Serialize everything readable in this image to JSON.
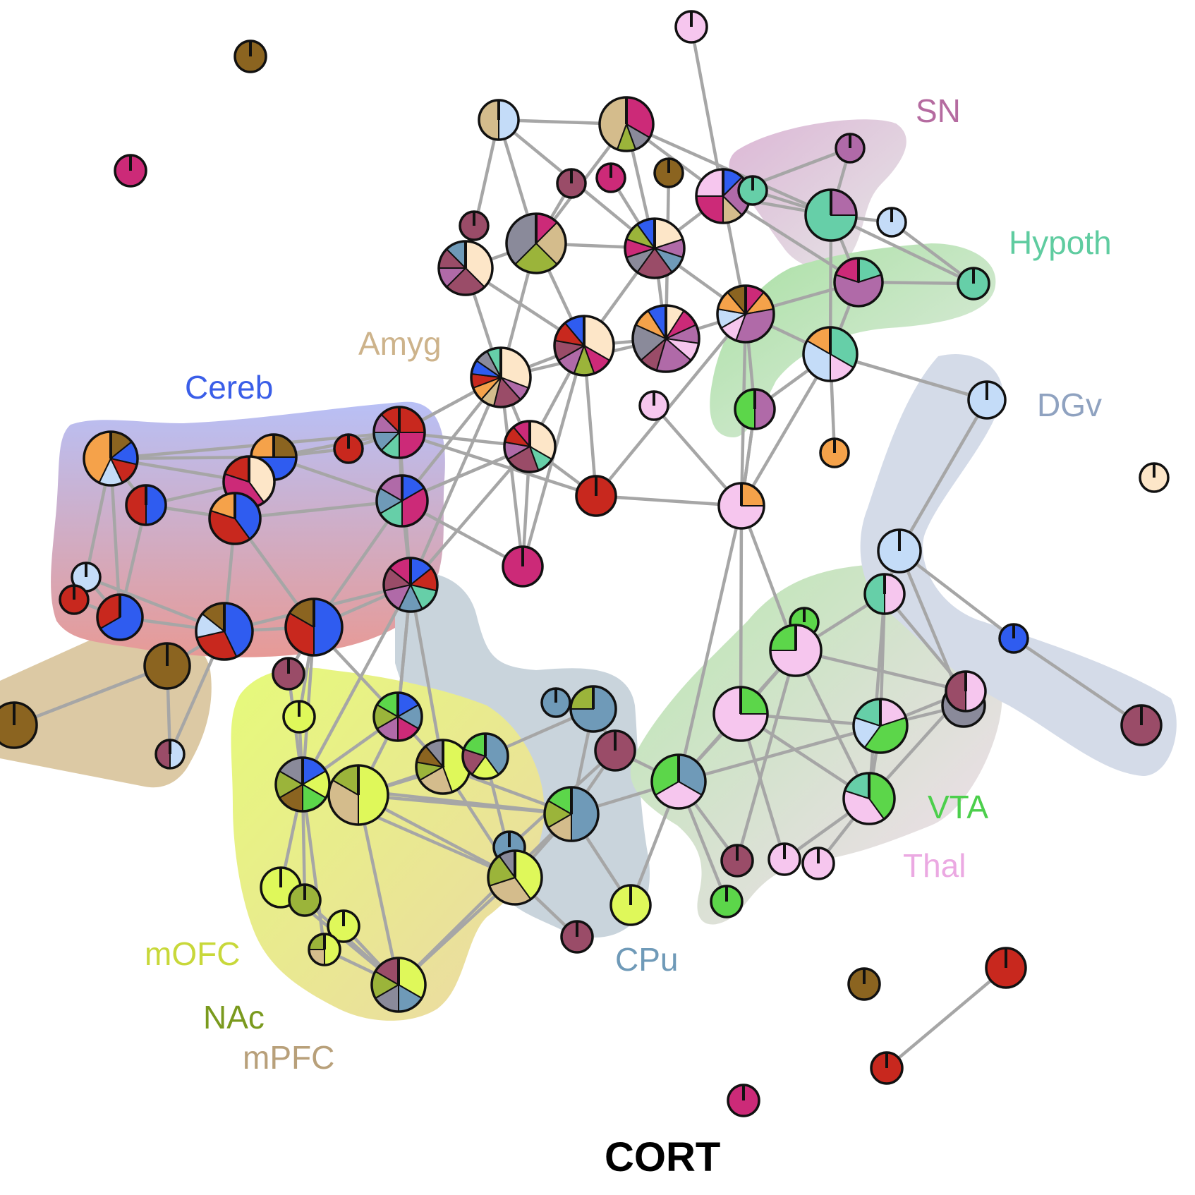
{
  "title": "CORT",
  "region_labels": [
    {
      "id": "SN",
      "text": "SN",
      "color": "#b56ba0"
    },
    {
      "id": "Hypoth",
      "text": "Hypoth",
      "color": "#5fcca0"
    },
    {
      "id": "Amyg",
      "text": "Amyg",
      "color": "#cdb38b"
    },
    {
      "id": "Cereb",
      "text": "Cereb",
      "color": "#3a5ee8"
    },
    {
      "id": "DGv",
      "text": "DGv",
      "color": "#8fa2c0"
    },
    {
      "id": "VTA",
      "text": "VTA",
      "color": "#4ccf4c"
    },
    {
      "id": "Thal",
      "text": "Thal",
      "color": "#eba9e2"
    },
    {
      "id": "mOFC",
      "text": "mOFC",
      "color": "#c8d83a"
    },
    {
      "id": "CPu",
      "text": "CPu",
      "color": "#6f9ab8"
    },
    {
      "id": "NAc",
      "text": "NAc",
      "color": "#7a9a1e"
    },
    {
      "id": "mPFC",
      "text": "mPFC",
      "color": "#b8a07a"
    }
  ],
  "colors": {
    "SN": "#b06aa8",
    "Hypoth": "#66cfa8",
    "Amyg": "#d4bc8c",
    "Cereb": "#2f5cf0",
    "DGv": "#c4dcf8",
    "VTA": "#5cd64a",
    "Thal": "#f6c6ee",
    "mOFC": "#dff85a",
    "CPu": "#6f9ab8",
    "NAc": "#9bb43a",
    "mPFC": "#8b6420",
    "Orange": "#f5a24a",
    "Red": "#c8281e",
    "Magenta": "#cc2a78",
    "Mauve": "#9a4c68",
    "Gray": "#8a8a9a",
    "Cream": "#fde6c8"
  },
  "nodes": [
    {
      "id": 1,
      "slices": [
        [
          "Thal",
          1
        ]
      ]
    },
    {
      "id": 2,
      "slices": [
        [
          "mPFC",
          1
        ]
      ]
    },
    {
      "id": 3,
      "slices": [
        [
          "Magenta",
          1
        ]
      ]
    },
    {
      "id": 4,
      "slices": [
        [
          "DGv",
          1
        ],
        [
          "Amyg",
          1
        ]
      ]
    },
    {
      "id": 5,
      "slices": [
        [
          "Magenta",
          3
        ],
        [
          "Gray",
          1
        ],
        [
          "NAc",
          1
        ],
        [
          "Amyg",
          4
        ]
      ]
    },
    {
      "id": 6,
      "slices": [
        [
          "SN",
          1
        ]
      ]
    },
    {
      "id": 7,
      "slices": [
        [
          "Mauve",
          1
        ]
      ]
    },
    {
      "id": 8,
      "slices": [
        [
          "Magenta",
          1
        ]
      ]
    },
    {
      "id": 9,
      "slices": [
        [
          "mPFC",
          1
        ]
      ]
    },
    {
      "id": 10,
      "slices": [
        [
          "Cereb",
          1
        ],
        [
          "SN",
          2
        ],
        [
          "Amyg",
          1
        ],
        [
          "Magenta",
          2
        ],
        [
          "Thal",
          2
        ]
      ]
    },
    {
      "id": 11,
      "slices": [
        [
          "Hypoth",
          1
        ]
      ]
    },
    {
      "id": 12,
      "slices": [
        [
          "DGv",
          1
        ]
      ]
    },
    {
      "id": 13,
      "slices": [
        [
          "SN",
          1
        ],
        [
          "Hypoth",
          3
        ]
      ]
    },
    {
      "id": 14,
      "slices": [
        [
          "Mauve",
          1
        ]
      ]
    },
    {
      "id": 15,
      "slices": [
        [
          "Magenta",
          1
        ],
        [
          "Amyg",
          2
        ],
        [
          "NAc",
          2
        ],
        [
          "Gray",
          3
        ]
      ]
    },
    {
      "id": 16,
      "slices": [
        [
          "Cream",
          3
        ],
        [
          "Mauve",
          2
        ],
        [
          "SN",
          1
        ],
        [
          "Mauve",
          1
        ],
        [
          "CPu",
          1
        ]
      ]
    },
    {
      "id": 17,
      "slices": [
        [
          "Cream",
          2
        ],
        [
          "SN",
          1
        ],
        [
          "CPu",
          1
        ],
        [
          "Mauve",
          2
        ],
        [
          "Gray",
          1
        ],
        [
          "Magenta",
          1
        ],
        [
          "NAc",
          1
        ],
        [
          "Cereb",
          1
        ]
      ]
    },
    {
      "id": 18,
      "slices": [
        [
          "Cream",
          1
        ],
        [
          "Magenta",
          1
        ],
        [
          "SN",
          1
        ],
        [
          "Thal",
          1
        ],
        [
          "SN",
          2
        ],
        [
          "Mauve",
          1
        ],
        [
          "Gray",
          2
        ],
        [
          "Orange",
          1
        ],
        [
          "Cereb",
          1
        ]
      ]
    },
    {
      "id": 19,
      "slices": [
        [
          "Hypoth",
          1
        ],
        [
          "SN",
          3
        ],
        [
          "Magenta",
          1
        ]
      ]
    },
    {
      "id": 20,
      "slices": [
        [
          "Hypoth",
          1
        ]
      ]
    },
    {
      "id": 21,
      "slices": [
        [
          "Magenta",
          1
        ],
        [
          "Orange",
          1
        ],
        [
          "SN",
          3
        ],
        [
          "Thal",
          1
        ],
        [
          "DGv",
          1
        ],
        [
          "Orange",
          1
        ],
        [
          "mPFC",
          1
        ]
      ]
    },
    {
      "id": 22,
      "slices": [
        [
          "Cream",
          3
        ],
        [
          "Magenta",
          1
        ],
        [
          "NAc",
          1
        ],
        [
          "SN",
          1
        ],
        [
          "Mauve",
          1
        ],
        [
          "Red",
          1
        ],
        [
          "Cereb",
          1
        ]
      ]
    },
    {
      "id": 23,
      "slices": [
        [
          "Cream",
          4
        ],
        [
          "SN",
          1
        ],
        [
          "Mauve",
          2
        ],
        [
          "Amyg",
          1
        ],
        [
          "Orange",
          1
        ],
        [
          "Red",
          1
        ],
        [
          "Cereb",
          1
        ],
        [
          "Gray",
          1
        ],
        [
          "Hypoth",
          1
        ]
      ]
    },
    {
      "id": 24,
      "slices": [
        [
          "Hypoth",
          2
        ],
        [
          "Thal",
          1
        ],
        [
          "DGv",
          2
        ],
        [
          "Orange",
          1
        ]
      ]
    },
    {
      "id": 25,
      "slices": [
        [
          "Cream",
          3
        ],
        [
          "Hypoth",
          1
        ],
        [
          "Mauve",
          2
        ],
        [
          "SN",
          1
        ],
        [
          "Red",
          1
        ],
        [
          "Magenta",
          1
        ]
      ]
    },
    {
      "id": 26,
      "slices": [
        [
          "Thal",
          1
        ]
      ]
    },
    {
      "id": 27,
      "slices": [
        [
          "SN",
          1
        ],
        [
          "VTA",
          1
        ]
      ]
    },
    {
      "id": 28,
      "slices": [
        [
          "DGv",
          1
        ]
      ]
    },
    {
      "id": 29,
      "slices": [
        [
          "Cream",
          1
        ]
      ]
    },
    {
      "id": 30,
      "slices": [
        [
          "mPFC",
          1
        ],
        [
          "Cereb",
          1
        ],
        [
          "Red",
          1
        ],
        [
          "DGv",
          1
        ],
        [
          "Orange",
          3
        ]
      ]
    },
    {
      "id": 31,
      "slices": [
        [
          "mPFC",
          1
        ],
        [
          "Cereb",
          2
        ],
        [
          "Orange",
          1
        ]
      ]
    },
    {
      "id": 32,
      "slices": [
        [
          "Red",
          1
        ]
      ]
    },
    {
      "id": 33,
      "slices": [
        [
          "Red",
          2
        ],
        [
          "Magenta",
          2
        ],
        [
          "Hypoth",
          1
        ],
        [
          "CPu",
          1
        ],
        [
          "SN",
          1
        ],
        [
          "Red",
          1
        ]
      ]
    },
    {
      "id": 34,
      "slices": [
        [
          "Cream",
          2
        ],
        [
          "Magenta",
          2
        ],
        [
          "Red",
          1
        ]
      ]
    },
    {
      "id": 35,
      "slices": [
        [
          "Orange",
          1
        ]
      ]
    },
    {
      "id": 36,
      "slices": [
        [
          "Orange",
          1
        ],
        [
          "Thal",
          3
        ]
      ]
    },
    {
      "id": 37,
      "slices": [
        [
          "Cereb",
          1
        ],
        [
          "Red",
          1
        ]
      ]
    },
    {
      "id": 38,
      "slices": [
        [
          "Cereb",
          2
        ],
        [
          "Red",
          2
        ],
        [
          "Orange",
          1
        ]
      ]
    },
    {
      "id": 39,
      "slices": [
        [
          "Cereb",
          1
        ],
        [
          "Magenta",
          2
        ],
        [
          "Hypoth",
          1
        ],
        [
          "CPu",
          1
        ],
        [
          "SN",
          1
        ]
      ]
    },
    {
      "id": 40,
      "slices": [
        [
          "Red",
          1
        ]
      ]
    },
    {
      "id": 41,
      "slices": [
        [
          "DGv",
          1
        ]
      ]
    },
    {
      "id": 42,
      "slices": [
        [
          "Magenta",
          1
        ]
      ]
    },
    {
      "id": 43,
      "slices": [
        [
          "Red",
          1
        ]
      ]
    },
    {
      "id": 44,
      "slices": [
        [
          "Cereb",
          2
        ],
        [
          "Red",
          1
        ]
      ]
    },
    {
      "id": 45,
      "slices": [
        [
          "Cereb",
          3
        ],
        [
          "Red",
          2
        ],
        [
          "DGv",
          1
        ],
        [
          "mPFC",
          1
        ]
      ]
    },
    {
      "id": 46,
      "slices": [
        [
          "Cereb",
          1
        ],
        [
          "Red",
          1
        ],
        [
          "Hypoth",
          1
        ],
        [
          "CPu",
          1
        ],
        [
          "SN",
          1
        ],
        [
          "Mauve",
          1
        ],
        [
          "Magenta",
          1
        ]
      ]
    },
    {
      "id": 47,
      "slices": [
        [
          "Cereb",
          3
        ],
        [
          "Red",
          2
        ],
        [
          "mPFC",
          1
        ]
      ]
    },
    {
      "id": 48,
      "slices": [
        [
          "DGv",
          1
        ]
      ]
    },
    {
      "id": 49,
      "slices": [
        [
          "Thal",
          1
        ],
        [
          "Hypoth",
          1
        ]
      ]
    },
    {
      "id": 50,
      "slices": [
        [
          "VTA",
          1
        ]
      ]
    },
    {
      "id": 51,
      "slices": [
        [
          "Thal",
          3
        ],
        [
          "VTA",
          1
        ]
      ]
    },
    {
      "id": 52,
      "slices": [
        [
          "mPFC",
          1
        ]
      ]
    },
    {
      "id": 53,
      "slices": [
        [
          "mPFC",
          1
        ]
      ]
    },
    {
      "id": 54,
      "slices": [
        [
          "Cereb",
          1
        ]
      ]
    },
    {
      "id": 55,
      "slices": [
        [
          "Mauve",
          1
        ]
      ]
    },
    {
      "id": 56,
      "slices": [
        [
          "mOFC",
          1
        ]
      ]
    },
    {
      "id": 57,
      "slices": [
        [
          "Cereb",
          1
        ],
        [
          "CPu",
          1
        ],
        [
          "Magenta",
          1
        ],
        [
          "SN",
          1
        ],
        [
          "NAc",
          1
        ],
        [
          "VTA",
          1
        ]
      ]
    },
    {
      "id": 58,
      "slices": [
        [
          "Gray",
          1
        ]
      ]
    },
    {
      "id": 59,
      "slices": [
        [
          "CPu",
          1
        ]
      ]
    },
    {
      "id": 60,
      "slices": [
        [
          "CPu",
          3
        ],
        [
          "NAc",
          1
        ]
      ]
    },
    {
      "id": 61,
      "slices": [
        [
          "Mauve",
          1
        ]
      ]
    },
    {
      "id": 62,
      "slices": [
        [
          "Cereb",
          1
        ],
        [
          "mOFC",
          1
        ],
        [
          "VTA",
          1
        ],
        [
          "mPFC",
          1
        ],
        [
          "NAc",
          1
        ],
        [
          "Gray",
          1
        ]
      ]
    },
    {
      "id": 63,
      "slices": [
        [
          "mOFC",
          4
        ],
        [
          "Amyg",
          2
        ],
        [
          "NAc",
          1
        ],
        [
          "mPFC",
          1
        ],
        [
          "Gray",
          1
        ]
      ]
    },
    {
      "id": 64,
      "slices": [
        [
          "mOFC",
          3
        ],
        [
          "Amyg",
          2
        ],
        [
          "NAc",
          1
        ]
      ]
    },
    {
      "id": 65,
      "slices": [
        [
          "CPu",
          2
        ],
        [
          "mOFC",
          1
        ],
        [
          "Mauve",
          1
        ],
        [
          "VTA",
          1
        ]
      ]
    },
    {
      "id": 66,
      "slices": [
        [
          "CPu",
          3
        ],
        [
          "Amyg",
          1
        ],
        [
          "NAc",
          1
        ],
        [
          "VTA",
          1
        ]
      ]
    },
    {
      "id": 67,
      "slices": [
        [
          "Mauve",
          1
        ]
      ]
    },
    {
      "id": 68,
      "slices": [
        [
          "CPu",
          2
        ],
        [
          "Thal",
          2
        ],
        [
          "VTA",
          2
        ]
      ]
    },
    {
      "id": 69,
      "slices": [
        [
          "VTA",
          1
        ],
        [
          "Thal",
          3
        ]
      ]
    },
    {
      "id": 70,
      "slices": [
        [
          "Thal",
          1
        ],
        [
          "VTA",
          2
        ],
        [
          "DGv",
          1
        ],
        [
          "Hypoth",
          1
        ]
      ]
    },
    {
      "id": 71,
      "slices": [
        [
          "VTA",
          2
        ],
        [
          "Thal",
          2
        ],
        [
          "Hypoth",
          1
        ]
      ]
    },
    {
      "id": 72,
      "slices": [
        [
          "DGv",
          1
        ],
        [
          "Mauve",
          1
        ]
      ]
    },
    {
      "id": 73,
      "slices": [
        [
          "Thal",
          1
        ],
        [
          "Mauve",
          1
        ]
      ]
    },
    {
      "id": 74,
      "slices": [
        [
          "Mauve",
          1
        ]
      ]
    },
    {
      "id": 75,
      "slices": [
        [
          "Thal",
          1
        ]
      ]
    },
    {
      "id": 76,
      "slices": [
        [
          "Thal",
          1
        ]
      ]
    },
    {
      "id": 77,
      "slices": [
        [
          "VTA",
          1
        ]
      ]
    },
    {
      "id": 78,
      "slices": [
        [
          "CPu",
          1
        ]
      ]
    },
    {
      "id": 79,
      "slices": [
        [
          "mOFC",
          1
        ]
      ]
    },
    {
      "id": 80,
      "slices": [
        [
          "mOFC",
          1
        ]
      ]
    },
    {
      "id": 81,
      "slices": [
        [
          "NAc",
          1
        ]
      ]
    },
    {
      "id": 82,
      "slices": [
        [
          "mOFC",
          1
        ]
      ]
    },
    {
      "id": 83,
      "slices": [
        [
          "mOFC",
          4
        ],
        [
          "Amyg",
          3
        ],
        [
          "NAc",
          2
        ],
        [
          "Gray",
          1
        ]
      ]
    },
    {
      "id": 84,
      "slices": [
        [
          "mOFC",
          2
        ],
        [
          "Amyg",
          1
        ],
        [
          "NAc",
          1
        ]
      ]
    },
    {
      "id": 85,
      "slices": [
        [
          "mOFC",
          2
        ],
        [
          "CPu",
          1
        ],
        [
          "Gray",
          1
        ],
        [
          "NAc",
          1
        ],
        [
          "Mauve",
          1
        ]
      ]
    },
    {
      "id": 86,
      "slices": [
        [
          "Mauve",
          1
        ]
      ]
    },
    {
      "id": 87,
      "slices": [
        [
          "mPFC",
          1
        ]
      ]
    },
    {
      "id": 88,
      "slices": [
        [
          "Red",
          1
        ]
      ]
    },
    {
      "id": 89,
      "slices": [
        [
          "Red",
          1
        ]
      ]
    },
    {
      "id": 90,
      "slices": [
        [
          "Magenta",
          1
        ]
      ]
    }
  ]
}
